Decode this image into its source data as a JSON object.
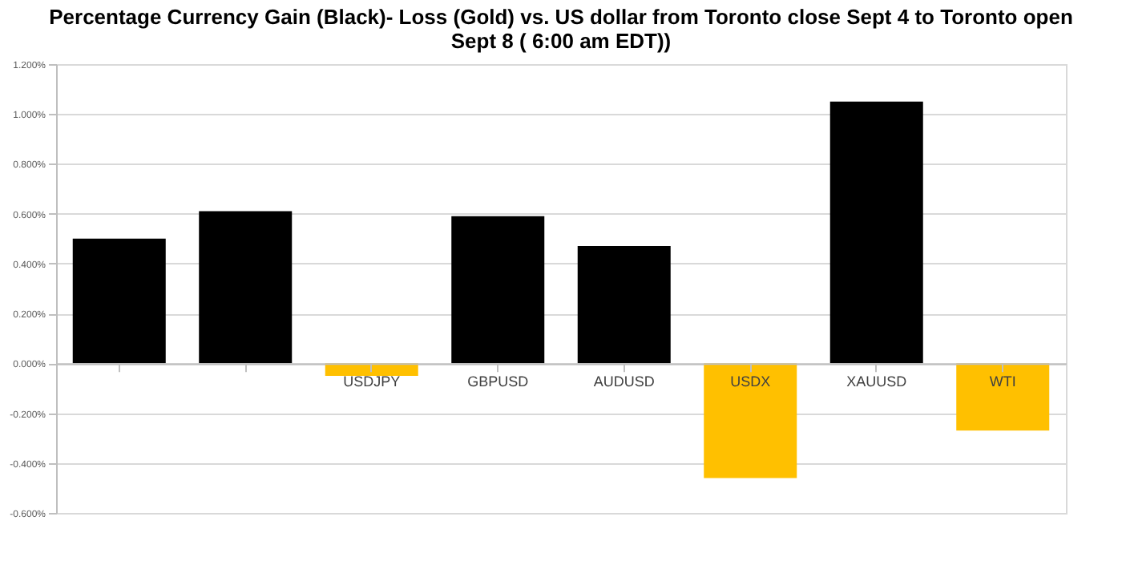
{
  "chart_data": {
    "type": "bar",
    "title": "Percentage Currency  Gain (Black)- Loss (Gold)  vs. US dollar  from Toronto close Sept 4 to Toronto  open Sept 8 ( 6:00 am EDT))",
    "categories": [
      null,
      null,
      "USDJPY",
      "GBPUSD",
      "AUDUSD",
      "USDX",
      "XAUUSD",
      "WTI"
    ],
    "values": [
      0.5,
      0.61,
      -0.05,
      0.59,
      0.47,
      -0.46,
      1.05,
      -0.27
    ],
    "colors": [
      "#000000",
      "#000000",
      "#ffc000",
      "#000000",
      "#000000",
      "#ffc000",
      "#000000",
      "#ffc000"
    ],
    "ylim": [
      -0.6,
      1.2
    ],
    "yticks": [
      {
        "value": -0.6,
        "label": "-0.600%"
      },
      {
        "value": -0.4,
        "label": "-0.400%"
      },
      {
        "value": -0.2,
        "label": "-0.200%"
      },
      {
        "value": 0,
        "label": "0.000%"
      },
      {
        "value": 0.2,
        "label": "0.200%"
      },
      {
        "value": 0.4,
        "label": "0.400%"
      },
      {
        "value": 0.6,
        "label": "0.600%"
      },
      {
        "value": 0.8,
        "label": "0.800%"
      },
      {
        "value": 1.0,
        "label": "1.000%"
      },
      {
        "value": 1.2,
        "label": "1.200%"
      }
    ],
    "grid": "y"
  }
}
